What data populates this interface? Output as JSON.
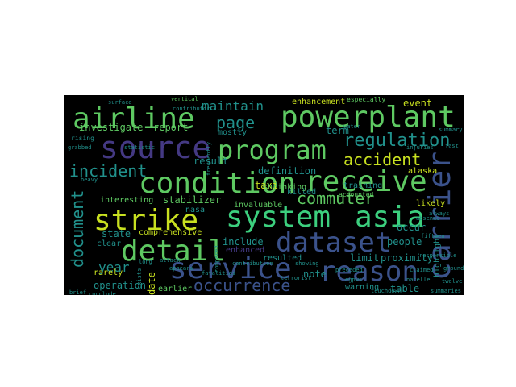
{
  "palette": {
    "background": "#000000",
    "green": "#5ec962",
    "teal": "#21918c",
    "mint": "#3ccf7e",
    "purple": "#443983",
    "indigo": "#3b528b",
    "yellow": "#c8e020",
    "blue": "#31688e"
  },
  "words": {
    "airline": "airline",
    "powerplant": "powerplant",
    "source": "source",
    "program": "program",
    "condition": "condition",
    "receive": "receive",
    "strike": "strike",
    "system": "system",
    "asia": "asia",
    "dataset": "dataset",
    "detail": "detail",
    "service": "service",
    "reason": "reason",
    "carrier": "carrier",
    "occurrence": "occurrence",
    "incident": "incident",
    "accident": "accident",
    "regulation": "regulation",
    "commuter": "commuter",
    "document": "document",
    "maintain": "maintain",
    "page": "page",
    "investigate": "investigate",
    "report": "report",
    "year": "year",
    "operation": "operation",
    "definition": "definition",
    "result": "result",
    "term": "term",
    "event": "event",
    "enhancement": "enhancement",
    "especially": "especially",
    "training": "training",
    "taxi": "taxi",
    "killed": "killed",
    "alaska": "alaska",
    "accounted": "accounted",
    "interesting": "interesting",
    "stabilizer": "stabilizer",
    "nasa": "nasa",
    "shrinking": "shrinking",
    "invaluable": "invaluable",
    "state": "state",
    "comprehensive": "comprehensive",
    "include": "include",
    "clear": "clear",
    "enhanced": "enhanced",
    "resulted": "resulted",
    "limit": "limit",
    "note": "note",
    "proximity": "proximity",
    "people": "people",
    "occur": "occur",
    "likely": "likely",
    "date": "date",
    "earlier": "earlier",
    "warning": "warning",
    "table": "table",
    "highlight": "highlight",
    "rarely": "rarely",
    "mostly": "mostly",
    "rising": "rising",
    "vertical": "vertical",
    "frequently": "frequently",
    "appears": "appears",
    "fatalities": "fatalities",
    "terrorist": "terrorist",
    "contribution": "contribution",
    "showing": "showing",
    "fifteen": "fifteen",
    "twelve": "twelve",
    "injuries": "injuries",
    "water": "water",
    "summary": "summary",
    "grabbed": "grabbed",
    "surface": "surface",
    "contributor": "contributor",
    "exists": "exists",
    "compared": "compared",
    "attack": "attack",
    "claimed": "claimed",
    "nacelle": "nacelle",
    "absence": "absence",
    "always": "always",
    "fast": "fast",
    "touchdown": "touchdown",
    "preceded": "preceded",
    "egpws": "egpws",
    "long": "long",
    "brief": "brief",
    "conclude": "conclude",
    "responsible": "responsible",
    "ground": "ground",
    "summaries": "summaries",
    "statistic": "statistic",
    "heavy": "heavy"
  }
}
